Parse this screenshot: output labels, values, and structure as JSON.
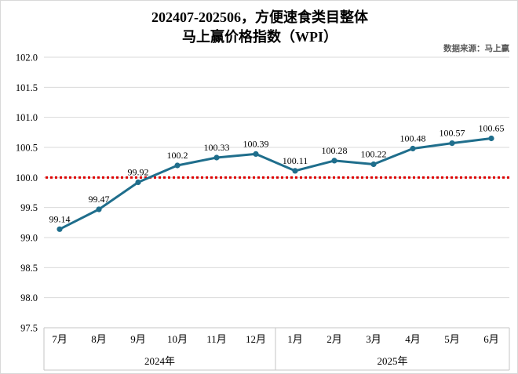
{
  "title": {
    "line1": "202407-202506，方便速食类目整体",
    "line2": "马上赢价格指数（WPI）"
  },
  "source": "数据来源：马上赢",
  "colors": {
    "line": "#1F6E8C",
    "marker": "#1F6E8C",
    "reference": "#DD0000",
    "grid": "#D9D9D9",
    "axis_border": "#C6C6C6",
    "text": "#000000",
    "source_text": "#595959"
  },
  "chart_data": {
    "type": "line",
    "title": "202407-202506，方便速食类目整体 马上赢价格指数（WPI）",
    "categories": [
      "7月",
      "8月",
      "9月",
      "10月",
      "11月",
      "12月",
      "1月",
      "2月",
      "3月",
      "4月",
      "5月",
      "6月"
    ],
    "year_groups": [
      {
        "label": "2024年",
        "span": 6
      },
      {
        "label": "2025年",
        "span": 6
      }
    ],
    "series": [
      {
        "name": "马上赢价格指数（WPI）",
        "values": [
          99.14,
          99.47,
          99.92,
          100.2,
          100.33,
          100.39,
          100.11,
          100.28,
          100.22,
          100.48,
          100.57,
          100.65
        ]
      }
    ],
    "data_labels": [
      "99.14",
      "99.47",
      "99.92",
      "100.2",
      "100.33",
      "100.39",
      "100.11",
      "100.28",
      "100.22",
      "100.48",
      "100.57",
      "100.65"
    ],
    "ylim": [
      97.5,
      102.0
    ],
    "ytick_step": 0.5,
    "yticks": [
      "102.0",
      "101.5",
      "101.0",
      "100.5",
      "100.0",
      "99.5",
      "99.0",
      "98.5",
      "98.0",
      "97.5"
    ],
    "reference_line": 100.0,
    "grid": true,
    "legend": "none",
    "xlabel": "",
    "ylabel": ""
  }
}
